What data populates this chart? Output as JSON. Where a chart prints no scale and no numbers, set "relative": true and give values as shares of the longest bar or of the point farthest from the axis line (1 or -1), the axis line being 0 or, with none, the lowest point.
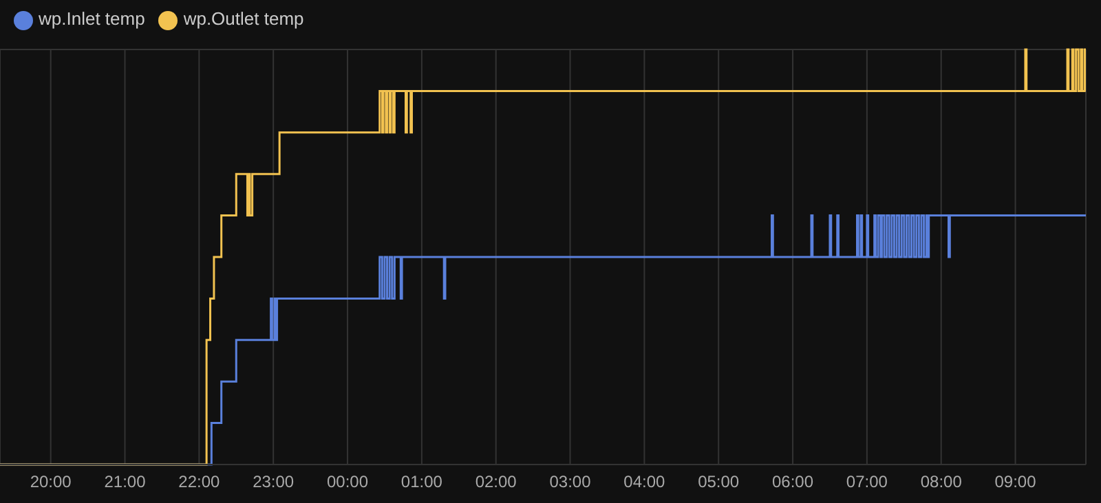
{
  "chart_data": {
    "type": "step",
    "relative": true,
    "grid": true,
    "legend": "top left",
    "tick_labels": "x",
    "xlim": [
      "2000-01-01T19:19",
      "2000-01-02T09:57"
    ],
    "xticks": [
      {
        "value": "2000-01-01T20:00",
        "label": "20:00"
      },
      {
        "value": "2000-01-01T21:00",
        "label": "21:00"
      },
      {
        "value": "2000-01-01T22:00",
        "label": "22:00"
      },
      {
        "value": "2000-01-01T23:00",
        "label": "23:00"
      },
      {
        "value": "2000-01-02T00:00",
        "label": "00:00"
      },
      {
        "value": "2000-01-02T01:00",
        "label": "01:00"
      },
      {
        "value": "2000-01-02T02:00",
        "label": "02:00"
      },
      {
        "value": "2000-01-02T03:00",
        "label": "03:00"
      },
      {
        "value": "2000-01-02T04:00",
        "label": "04:00"
      },
      {
        "value": "2000-01-02T05:00",
        "label": "05:00"
      },
      {
        "value": "2000-01-02T06:00",
        "label": "06:00"
      },
      {
        "value": "2000-01-02T07:00",
        "label": "07:00"
      },
      {
        "value": "2000-01-02T08:00",
        "label": "08:00"
      },
      {
        "value": "2000-01-02T09:00",
        "label": "09:00"
      }
    ],
    "series": [
      {
        "name": "wp.Inlet temp",
        "color": "#5a80dc",
        "x": [
          "2000-01-01T19:19",
          "2000-01-01T22:10",
          "2000-01-01T22:18",
          "2000-01-01T22:30",
          "2000-01-01T22:58",
          "2000-01-01T22:59",
          "2000-01-01T23:01",
          "2000-01-01T23:02",
          "2000-01-01T23:03",
          "2000-01-02T00:26",
          "2000-01-02T00:28",
          "2000-01-02T00:30",
          "2000-01-02T00:32",
          "2000-01-02T00:34",
          "2000-01-02T00:36",
          "2000-01-02T00:38",
          "2000-01-02T00:43",
          "2000-01-02T00:44",
          "2000-01-02T01:18",
          "2000-01-02T01:19",
          "2000-01-02T05:43",
          "2000-01-02T05:44",
          "2000-01-02T06:15",
          "2000-01-02T06:16",
          "2000-01-02T06:30",
          "2000-01-02T06:31",
          "2000-01-02T06:36",
          "2000-01-02T06:37",
          "2000-01-02T06:52",
          "2000-01-02T06:53",
          "2000-01-02T06:55",
          "2000-01-02T06:56",
          "2000-01-02T07:00",
          "2000-01-02T07:01",
          "2000-01-02T07:06",
          "2000-01-02T07:07",
          "2000-01-02T07:09",
          "2000-01-02T07:11",
          "2000-01-02T07:12",
          "2000-01-02T07:14",
          "2000-01-02T07:16",
          "2000-01-02T07:18",
          "2000-01-02T07:20",
          "2000-01-02T07:22",
          "2000-01-02T07:24",
          "2000-01-02T07:26",
          "2000-01-02T07:28",
          "2000-01-02T07:30",
          "2000-01-02T07:32",
          "2000-01-02T07:34",
          "2000-01-02T07:36",
          "2000-01-02T07:38",
          "2000-01-02T07:40",
          "2000-01-02T07:42",
          "2000-01-02T07:44",
          "2000-01-02T07:46",
          "2000-01-02T07:48",
          "2000-01-02T07:49",
          "2000-01-02T07:50",
          "2000-01-02T07:52",
          "2000-01-02T08:06",
          "2000-01-02T08:07",
          "2000-01-02T09:57"
        ],
        "values": [
          0,
          0.1,
          0.2,
          0.3,
          0.4,
          0.3,
          0.4,
          0.3,
          0.4,
          0.5,
          0.4,
          0.5,
          0.4,
          0.5,
          0.4,
          0.5,
          0.4,
          0.5,
          0.4,
          0.5,
          0.6,
          0.5,
          0.6,
          0.5,
          0.6,
          0.5,
          0.6,
          0.5,
          0.6,
          0.5,
          0.6,
          0.5,
          0.6,
          0.5,
          0.6,
          0.5,
          0.6,
          0.5,
          0.6,
          0.5,
          0.6,
          0.5,
          0.6,
          0.5,
          0.6,
          0.5,
          0.6,
          0.5,
          0.6,
          0.5,
          0.6,
          0.5,
          0.6,
          0.5,
          0.6,
          0.5,
          0.6,
          0.5,
          0.6,
          0.6,
          0.5,
          0.6,
          0.6
        ]
      },
      {
        "name": "wp.Outlet temp",
        "color": "#f2c250",
        "x": [
          "2000-01-01T19:19",
          "2000-01-01T22:06",
          "2000-01-01T22:09",
          "2000-01-01T22:12",
          "2000-01-01T22:18",
          "2000-01-01T22:30",
          "2000-01-01T22:39",
          "2000-01-01T22:40",
          "2000-01-01T22:41",
          "2000-01-01T22:43",
          "2000-01-01T23:05",
          "2000-01-02T00:26",
          "2000-01-02T00:28",
          "2000-01-02T00:29",
          "2000-01-02T00:31",
          "2000-01-02T00:32",
          "2000-01-02T00:34",
          "2000-01-02T00:35",
          "2000-01-02T00:37",
          "2000-01-02T00:38",
          "2000-01-02T00:47",
          "2000-01-02T00:48",
          "2000-01-02T00:51",
          "2000-01-02T00:52",
          "2000-01-02T09:08",
          "2000-01-02T09:09",
          "2000-01-02T09:42",
          "2000-01-02T09:43",
          "2000-01-02T09:46",
          "2000-01-02T09:47",
          "2000-01-02T09:49",
          "2000-01-02T09:51",
          "2000-01-02T09:53",
          "2000-01-02T09:54",
          "2000-01-02T09:56",
          "2000-01-02T09:57"
        ],
        "values": [
          0,
          0.3,
          0.4,
          0.5,
          0.6,
          0.7,
          0.6,
          0.7,
          0.6,
          0.7,
          0.8,
          0.9,
          0.8,
          0.9,
          0.8,
          0.9,
          0.8,
          0.9,
          0.8,
          0.9,
          0.8,
          0.9,
          0.8,
          0.9,
          1.0,
          0.9,
          1.0,
          0.9,
          1.0,
          0.9,
          1.0,
          0.9,
          1.0,
          0.9,
          1.0,
          0.9
        ]
      }
    ]
  }
}
